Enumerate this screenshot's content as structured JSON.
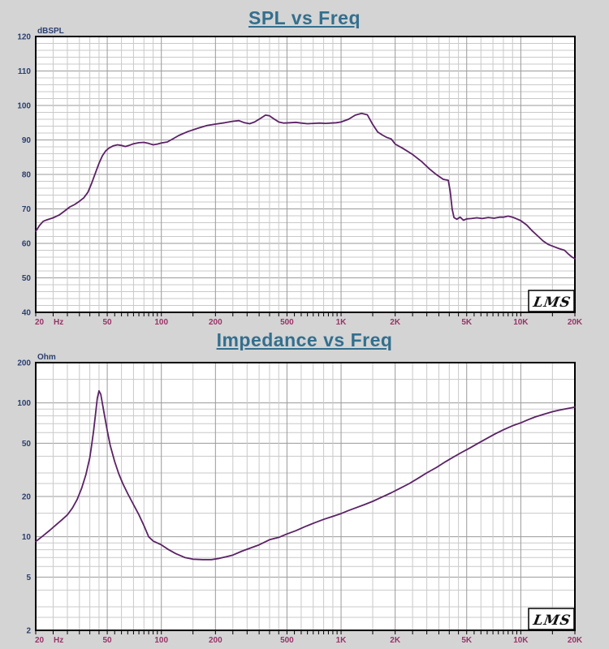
{
  "colors": {
    "page_bg": "#d4d4d4",
    "plot_bg": "#ffffff",
    "title": "#336f8e",
    "y_label": "#2a3f6e",
    "x_label": "#993366",
    "curve": "#5b2166",
    "grid_minor": "#c9c9c9",
    "grid_major": "#9a9a9a",
    "border": "#000000",
    "logo_text": "#111111"
  },
  "logo": "LMS",
  "chart_data": [
    {
      "id": "spl",
      "type": "line",
      "title": "SPL vs Freq",
      "unit_label": "dBSPL",
      "x_axis": {
        "scale": "log",
        "min": 20,
        "max": 20000,
        "hz_suffix": "Hz",
        "ticks": [
          [
            20,
            "20"
          ],
          [
            50,
            "50"
          ],
          [
            100,
            "100"
          ],
          [
            200,
            "200"
          ],
          [
            500,
            "500"
          ],
          [
            1000,
            "1K"
          ],
          [
            2000,
            "2K"
          ],
          [
            5000,
            "5K"
          ],
          [
            10000,
            "10K"
          ],
          [
            20000,
            "20K"
          ]
        ]
      },
      "y_axis": {
        "scale": "linear",
        "min": 40,
        "max": 120,
        "major_step": 10,
        "minor_step": 2,
        "ticks": [
          [
            120,
            "120"
          ],
          [
            110,
            "110"
          ],
          [
            100,
            "100"
          ],
          [
            90,
            "90"
          ],
          [
            80,
            "80"
          ],
          [
            70,
            "70"
          ],
          [
            60,
            "60"
          ],
          [
            50,
            "50"
          ],
          [
            40,
            "40"
          ]
        ]
      },
      "series": [
        {
          "name": "SPL",
          "points": [
            [
              20,
              63.5
            ],
            [
              21,
              65.2
            ],
            [
              22,
              66.4
            ],
            [
              23,
              66.8
            ],
            [
              25,
              67.4
            ],
            [
              27,
              68.2
            ],
            [
              29,
              69.4
            ],
            [
              31,
              70.6
            ],
            [
              33,
              71.3
            ],
            [
              35,
              72.2
            ],
            [
              37,
              73.2
            ],
            [
              39,
              74.8
            ],
            [
              41,
              77.5
            ],
            [
              43,
              80.5
            ],
            [
              45,
              83.2
            ],
            [
              47,
              85.4
            ],
            [
              49,
              86.8
            ],
            [
              51,
              87.6
            ],
            [
              54,
              88.3
            ],
            [
              57,
              88.6
            ],
            [
              60,
              88.4
            ],
            [
              63,
              88.1
            ],
            [
              66,
              88.4
            ],
            [
              70,
              88.9
            ],
            [
              75,
              89.2
            ],
            [
              80,
              89.3
            ],
            [
              85,
              89.0
            ],
            [
              90,
              88.6
            ],
            [
              95,
              88.8
            ],
            [
              100,
              89.1
            ],
            [
              108,
              89.4
            ],
            [
              115,
              90.2
            ],
            [
              125,
              91.3
            ],
            [
              140,
              92.4
            ],
            [
              160,
              93.4
            ],
            [
              180,
              94.2
            ],
            [
              200,
              94.6
            ],
            [
              225,
              95.0
            ],
            [
              250,
              95.4
            ],
            [
              270,
              95.6
            ],
            [
              290,
              95.0
            ],
            [
              310,
              94.7
            ],
            [
              330,
              95.2
            ],
            [
              355,
              96.2
            ],
            [
              380,
              97.2
            ],
            [
              400,
              97.0
            ],
            [
              420,
              96.2
            ],
            [
              450,
              95.2
            ],
            [
              480,
              94.9
            ],
            [
              520,
              95.0
            ],
            [
              560,
              95.1
            ],
            [
              600,
              94.9
            ],
            [
              650,
              94.7
            ],
            [
              700,
              94.8
            ],
            [
              760,
              94.9
            ],
            [
              820,
              94.8
            ],
            [
              880,
              94.9
            ],
            [
              940,
              95.0
            ],
            [
              1000,
              95.2
            ],
            [
              1100,
              96.0
            ],
            [
              1200,
              97.2
            ],
            [
              1300,
              97.7
            ],
            [
              1400,
              97.3
            ],
            [
              1500,
              94.5
            ],
            [
              1600,
              92.3
            ],
            [
              1700,
              91.4
            ],
            [
              1800,
              90.7
            ],
            [
              1900,
              90.3
            ],
            [
              2000,
              88.8
            ],
            [
              2200,
              87.6
            ],
            [
              2500,
              85.8
            ],
            [
              2800,
              83.8
            ],
            [
              3100,
              81.6
            ],
            [
              3400,
              79.9
            ],
            [
              3700,
              78.6
            ],
            [
              3950,
              78.3
            ],
            [
              4050,
              75.0
            ],
            [
              4150,
              70.0
            ],
            [
              4250,
              67.5
            ],
            [
              4400,
              67.0
            ],
            [
              4600,
              67.6
            ],
            [
              4800,
              66.7
            ],
            [
              5000,
              67.1
            ],
            [
              5300,
              67.2
            ],
            [
              5700,
              67.4
            ],
            [
              6100,
              67.2
            ],
            [
              6600,
              67.5
            ],
            [
              7100,
              67.3
            ],
            [
              7600,
              67.6
            ],
            [
              8000,
              67.6
            ],
            [
              8500,
              67.9
            ],
            [
              9000,
              67.6
            ],
            [
              9500,
              67.1
            ],
            [
              10000,
              66.6
            ],
            [
              10800,
              65.3
            ],
            [
              11600,
              63.6
            ],
            [
              12400,
              62.2
            ],
            [
              13300,
              60.7
            ],
            [
              14200,
              59.7
            ],
            [
              15200,
              59.1
            ],
            [
              16300,
              58.5
            ],
            [
              17500,
              58.0
            ],
            [
              18500,
              56.8
            ],
            [
              19300,
              56.0
            ],
            [
              20000,
              55.6
            ]
          ]
        }
      ]
    },
    {
      "id": "impedance",
      "type": "line",
      "title": "Impedance vs Freq",
      "unit_label": "Ohm",
      "x_axis": {
        "scale": "log",
        "min": 20,
        "max": 20000,
        "hz_suffix": "Hz",
        "ticks": [
          [
            20,
            "20"
          ],
          [
            50,
            "50"
          ],
          [
            100,
            "100"
          ],
          [
            200,
            "200"
          ],
          [
            500,
            "500"
          ],
          [
            1000,
            "1K"
          ],
          [
            2000,
            "2K"
          ],
          [
            5000,
            "5K"
          ],
          [
            10000,
            "10K"
          ],
          [
            20000,
            "20K"
          ]
        ]
      },
      "y_axis": {
        "scale": "log",
        "min": 2,
        "max": 200,
        "minor_mults": [
          1.5,
          2.5,
          3,
          4,
          6,
          7,
          8,
          9
        ],
        "ticks": [
          [
            200,
            "200"
          ],
          [
            100,
            "100"
          ],
          [
            50,
            "50"
          ],
          [
            20,
            "20"
          ],
          [
            10,
            "10"
          ],
          [
            5,
            "5"
          ],
          [
            2,
            "2"
          ]
        ]
      },
      "series": [
        {
          "name": "Impedance",
          "points": [
            [
              20,
              9.2
            ],
            [
              22,
              10.2
            ],
            [
              24,
              11.2
            ],
            [
              26,
              12.3
            ],
            [
              28,
              13.4
            ],
            [
              30,
              14.6
            ],
            [
              32,
              16.4
            ],
            [
              34,
              19.0
            ],
            [
              36,
              23.0
            ],
            [
              38,
              29.0
            ],
            [
              40,
              39.0
            ],
            [
              41,
              49.0
            ],
            [
              42,
              62.0
            ],
            [
              43,
              82.0
            ],
            [
              44,
              108.0
            ],
            [
              45,
              123.0
            ],
            [
              46,
              116.0
            ],
            [
              47,
              99.0
            ],
            [
              48,
              84.0
            ],
            [
              50,
              62.0
            ],
            [
              52,
              48.0
            ],
            [
              55,
              36.5
            ],
            [
              58,
              29.5
            ],
            [
              61,
              25.0
            ],
            [
              65,
              21.0
            ],
            [
              70,
              17.4
            ],
            [
              75,
              14.6
            ],
            [
              80,
              12.1
            ],
            [
              85,
              10.0
            ],
            [
              90,
              9.3
            ],
            [
              100,
              8.7
            ],
            [
              110,
              8.0
            ],
            [
              120,
              7.5
            ],
            [
              135,
              7.0
            ],
            [
              150,
              6.8
            ],
            [
              170,
              6.75
            ],
            [
              190,
              6.75
            ],
            [
              210,
              6.9
            ],
            [
              230,
              7.1
            ],
            [
              250,
              7.3
            ],
            [
              280,
              7.8
            ],
            [
              310,
              8.2
            ],
            [
              350,
              8.7
            ],
            [
              400,
              9.5
            ],
            [
              450,
              9.9
            ],
            [
              500,
              10.5
            ],
            [
              560,
              11.1
            ],
            [
              630,
              11.9
            ],
            [
              700,
              12.6
            ],
            [
              800,
              13.5
            ],
            [
              900,
              14.2
            ],
            [
              1000,
              14.9
            ],
            [
              1100,
              15.7
            ],
            [
              1200,
              16.4
            ],
            [
              1350,
              17.4
            ],
            [
              1500,
              18.4
            ],
            [
              1700,
              19.9
            ],
            [
              1900,
              21.3
            ],
            [
              2100,
              22.8
            ],
            [
              2400,
              25.0
            ],
            [
              2700,
              27.5
            ],
            [
              3000,
              30.0
            ],
            [
              3400,
              33.0
            ],
            [
              3800,
              36.3
            ],
            [
              4200,
              39.3
            ],
            [
              4700,
              42.8
            ],
            [
              5200,
              46.0
            ],
            [
              5800,
              50.0
            ],
            [
              6500,
              54.5
            ],
            [
              7200,
              58.7
            ],
            [
              8000,
              63.0
            ],
            [
              9000,
              67.5
            ],
            [
              10000,
              71.0
            ],
            [
              11000,
              75.0
            ],
            [
              12000,
              78.5
            ],
            [
              13500,
              82.5
            ],
            [
              15000,
              86.0
            ],
            [
              16500,
              88.5
            ],
            [
              18000,
              90.5
            ],
            [
              20000,
              93.0
            ]
          ]
        }
      ]
    }
  ]
}
